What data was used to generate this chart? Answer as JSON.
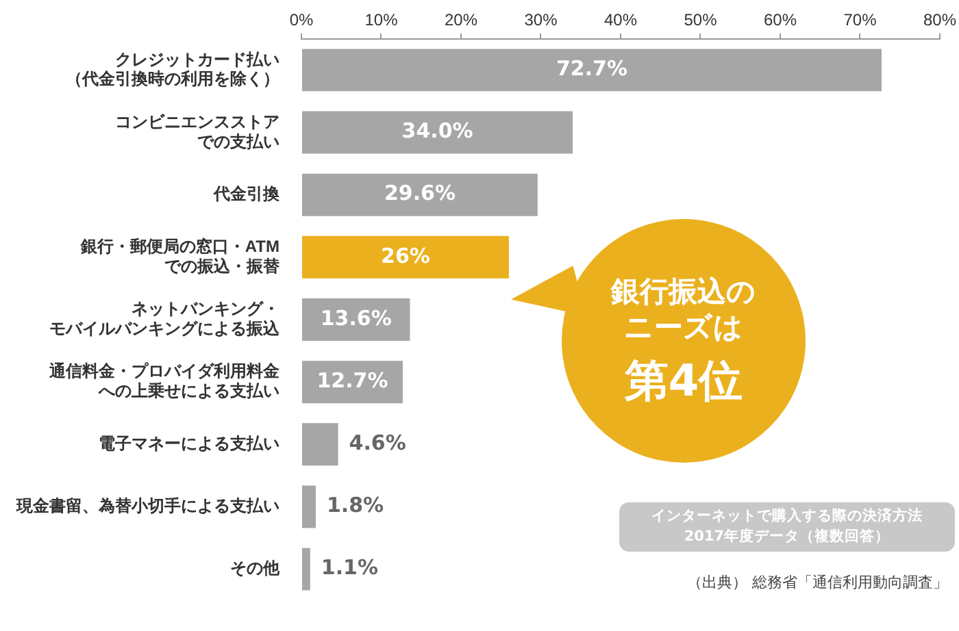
{
  "chart_data": {
    "type": "bar",
    "orientation": "horizontal",
    "categories": [
      "クレジットカード払い（代金引換時の利用を除く）",
      "コンビニエンスストアでの支払い",
      "代金引換",
      "銀行・郵便局の窓口・ATMでの振込・振替",
      "ネットバンキング・モバイルバンキングによる振込",
      "通信料金・プロバイダ利用料金への上乗せによる支払い",
      "電子マネーによる支払い",
      "現金書留、為替小切手による支払い",
      "その他"
    ],
    "values": [
      72.7,
      34.0,
      29.6,
      26,
      13.6,
      12.7,
      4.6,
      1.8,
      1.1
    ],
    "colors": [
      "#a6a6a6",
      "#a6a6a6",
      "#a6a6a6",
      "#ebb01e",
      "#a6a6a6",
      "#a6a6a6",
      "#a6a6a6",
      "#a6a6a6",
      "#a6a6a6"
    ],
    "value_labels": [
      "72.7%",
      "34.0%",
      "29.6%",
      "26%",
      "13.6%",
      "12.7%",
      "4.6%",
      "1.8%",
      "1.1%"
    ],
    "xlim": [
      0,
      80
    ],
    "xticks": [
      {
        "value": 0,
        "label": "0%"
      },
      {
        "value": 10,
        "label": "10%"
      },
      {
        "value": 20,
        "label": "20%"
      },
      {
        "value": 30,
        "label": "30%"
      },
      {
        "value": 40,
        "label": "40%"
      },
      {
        "value": 50,
        "label": "50%"
      },
      {
        "value": 60,
        "label": "60%"
      },
      {
        "value": 70,
        "label": "70%"
      },
      {
        "value": 80,
        "label": "80%"
      }
    ],
    "grid": false,
    "legend": false,
    "annotations": [
      "銀行振込のニーズは",
      "第4位",
      "インターネットで購入する際の決済方法",
      "2017年度データ（複数回答）",
      "（出典） 総務省「通信利用動向調査」"
    ]
  }
}
